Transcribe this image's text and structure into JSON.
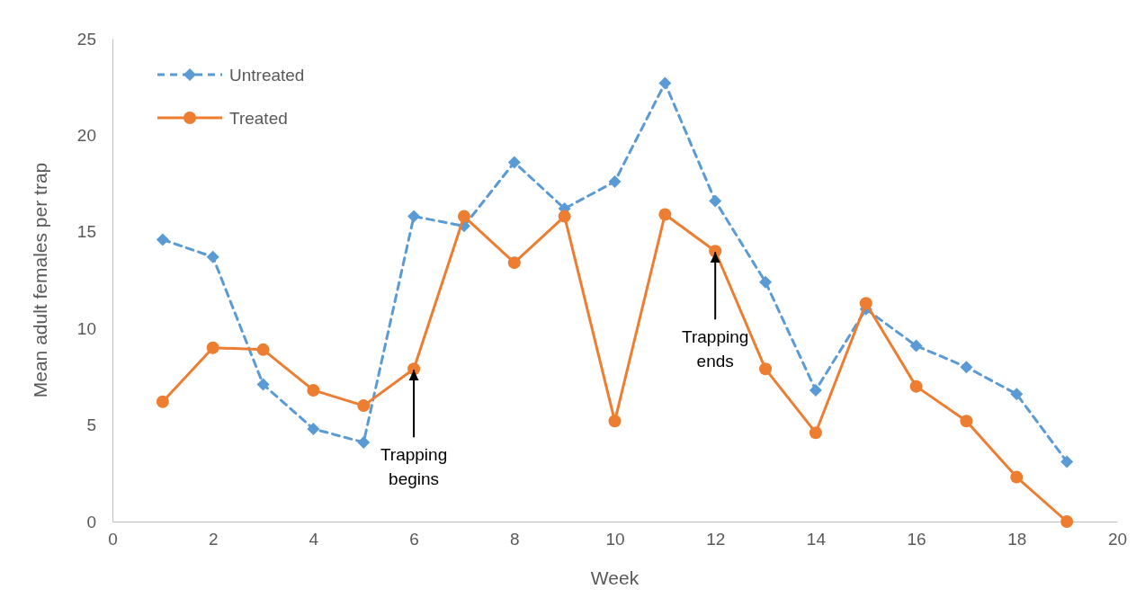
{
  "chart_data": {
    "type": "line",
    "xlabel": "Week",
    "ylabel": "Mean adult females per trap",
    "x": [
      1,
      2,
      3,
      4,
      5,
      6,
      7,
      8,
      9,
      10,
      11,
      12,
      13,
      14,
      15,
      16,
      17,
      18,
      19
    ],
    "series": [
      {
        "name": "Untreated",
        "color": "#5b9bd5",
        "marker": "diamond",
        "line_style": "dashed",
        "values": [
          14.6,
          13.7,
          7.1,
          4.8,
          4.1,
          15.8,
          15.3,
          18.6,
          16.2,
          17.6,
          22.7,
          16.6,
          12.4,
          6.8,
          11.0,
          9.1,
          8.0,
          6.6,
          3.1
        ]
      },
      {
        "name": "Treated",
        "color": "#ed7d31",
        "marker": "circle",
        "line_style": "solid",
        "values": [
          6.2,
          9.0,
          8.9,
          6.8,
          6.0,
          7.9,
          15.8,
          13.4,
          15.8,
          5.2,
          15.9,
          14.0,
          7.9,
          4.6,
          11.3,
          7.0,
          5.2,
          2.3,
          0
        ]
      }
    ],
    "xlim": [
      0,
      20
    ],
    "xticks": [
      0,
      2,
      4,
      6,
      8,
      10,
      12,
      14,
      16,
      18,
      20
    ],
    "ylim": [
      0,
      25
    ],
    "yticks": [
      0,
      5,
      10,
      15,
      20,
      25
    ],
    "grid": false,
    "legend": "top left",
    "annotations": [
      {
        "text": "Trapping\nbegins",
        "x": 6,
        "y": 7.9
      },
      {
        "text": "Trapping\nends",
        "x": 12,
        "y": 14.0
      }
    ]
  }
}
